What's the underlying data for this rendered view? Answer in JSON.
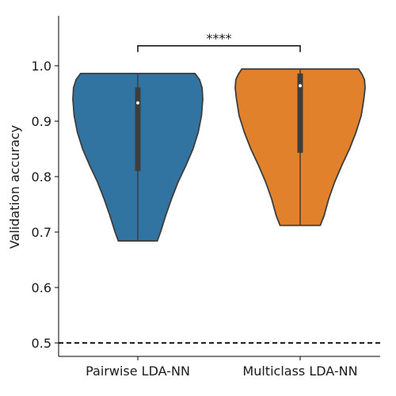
{
  "chart_data": {
    "type": "violin",
    "title": "",
    "xlabel": "",
    "ylabel": "Validation accuracy",
    "ylim": [
      0.475,
      1.085
    ],
    "yticks": [
      "0.5",
      "0.6",
      "0.7",
      "0.8",
      "0.9",
      "1.0"
    ],
    "categories": [
      "Pairwise LDA-NN",
      "Multiclass LDA-NN"
    ],
    "series": [
      {
        "category": "Pairwise LDA-NN",
        "color": "#3274a1",
        "min": 0.684,
        "max": 0.986,
        "q1": 0.81,
        "median": 0.933,
        "q3": 0.961,
        "density_profile": [
          [
            0.684,
            0.3
          ],
          [
            0.7,
            0.35
          ],
          [
            0.73,
            0.43
          ],
          [
            0.76,
            0.52
          ],
          [
            0.79,
            0.62
          ],
          [
            0.82,
            0.74
          ],
          [
            0.85,
            0.85
          ],
          [
            0.88,
            0.93
          ],
          [
            0.91,
            0.98
          ],
          [
            0.94,
            1.0
          ],
          [
            0.96,
            0.99
          ],
          [
            0.975,
            0.95
          ],
          [
            0.986,
            0.88
          ]
        ]
      },
      {
        "category": "Multiclass LDA-NN",
        "color": "#e1812c",
        "min": 0.712,
        "max": 0.994,
        "q1": 0.843,
        "median": 0.964,
        "q3": 0.986,
        "density_profile": [
          [
            0.712,
            0.31
          ],
          [
            0.73,
            0.37
          ],
          [
            0.76,
            0.44
          ],
          [
            0.79,
            0.53
          ],
          [
            0.82,
            0.64
          ],
          [
            0.85,
            0.76
          ],
          [
            0.88,
            0.86
          ],
          [
            0.91,
            0.94
          ],
          [
            0.94,
            0.98
          ],
          [
            0.96,
            1.0
          ],
          [
            0.975,
            0.99
          ],
          [
            0.985,
            0.95
          ],
          [
            0.994,
            0.9
          ]
        ]
      }
    ],
    "reference_line": {
      "y": 0.5,
      "style": "dashed",
      "color": "#000000"
    },
    "significance": {
      "label": "****",
      "between": [
        "Pairwise LDA-NN",
        "Multiclass LDA-NN"
      ],
      "y": 1.036
    }
  }
}
